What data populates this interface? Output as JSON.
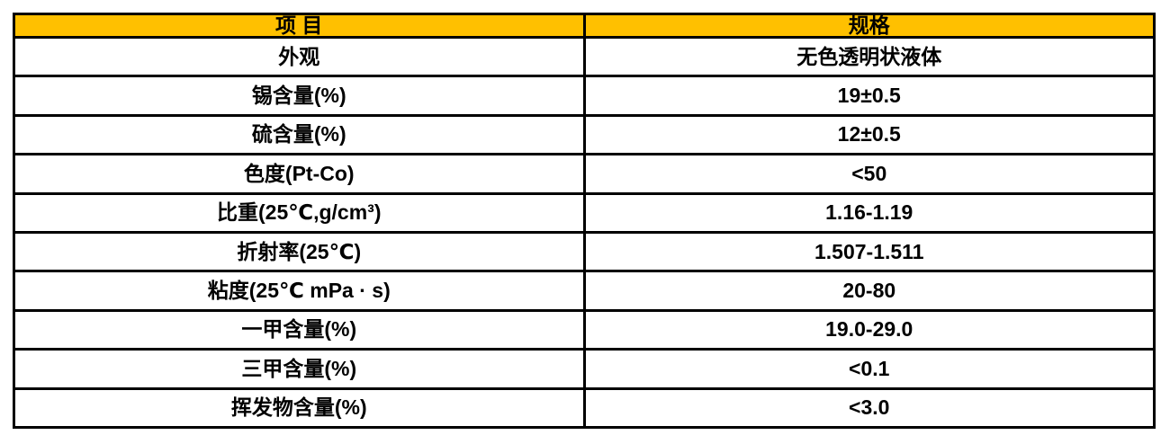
{
  "table": {
    "header_bg": "#FFC000",
    "border_color": "#000000",
    "text_color": "#000000",
    "headers": [
      {
        "label": "项 目"
      },
      {
        "label": "规格"
      }
    ],
    "rows": [
      {
        "item": "外观",
        "spec": "无色透明状液体"
      },
      {
        "item": "锡含量(%)",
        "spec": "19±0.5"
      },
      {
        "item": "硫含量(%)",
        "spec": "12±0.5"
      },
      {
        "item": "色度(Pt-Co)",
        "spec": "<50"
      },
      {
        "item": "比重(25℃,g/cm³)",
        "spec": "1.16-1.19"
      },
      {
        "item": "折射率(25℃)",
        "spec": "1.507-1.511"
      },
      {
        "item": "粘度(25℃ mPa · s)",
        "spec": "20-80"
      },
      {
        "item": "一甲含量(%)",
        "spec": "19.0-29.0"
      },
      {
        "item": "三甲含量(%)",
        "spec": "<0.1"
      },
      {
        "item": "挥发物含量(%)",
        "spec": "<3.0"
      }
    ]
  }
}
